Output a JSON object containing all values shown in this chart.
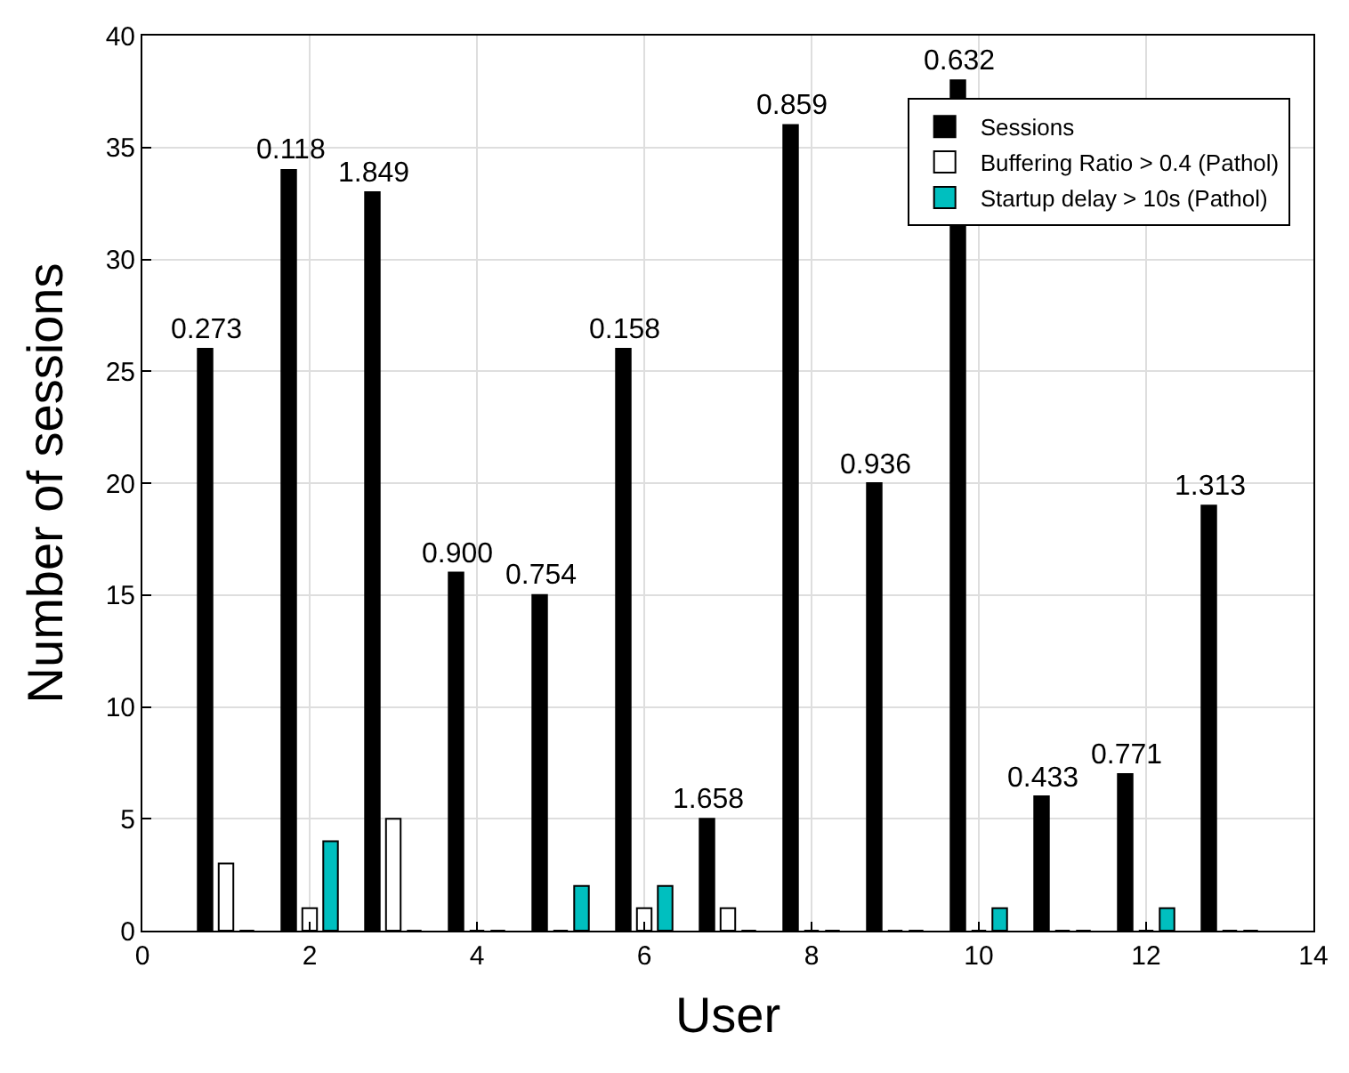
{
  "chart_data": {
    "type": "bar",
    "xlabel": "User",
    "ylabel": "Number of sessions",
    "x": [
      1,
      2,
      3,
      4,
      5,
      6,
      7,
      8,
      9,
      10,
      11,
      12,
      13
    ],
    "series": [
      {
        "name": "Sessions",
        "color": "#000000",
        "values": [
          26,
          34,
          33,
          16,
          15,
          26,
          5,
          36,
          20,
          38,
          6,
          7,
          19
        ]
      },
      {
        "name": "Buffering Ratio > 0.4 (Pathol)",
        "color": "#ffffff",
        "values": [
          3,
          1,
          5,
          0,
          0,
          1,
          1,
          0,
          0,
          0,
          0,
          0,
          0
        ]
      },
      {
        "name": "Startup delay > 10s (Pathol)",
        "color": "#00bfbf",
        "values": [
          0,
          4,
          0,
          0,
          2,
          2,
          0,
          0,
          0,
          1,
          0,
          1,
          0
        ]
      }
    ],
    "xlim": [
      0,
      14
    ],
    "xticks": [
      0,
      2,
      4,
      6,
      8,
      10,
      12,
      14
    ],
    "ylim": [
      0,
      40
    ],
    "yticks": [
      0,
      5,
      10,
      15,
      20,
      25,
      30,
      35,
      40
    ],
    "grid": true,
    "legend": "top right",
    "annotations": [
      "0.273",
      "0.118",
      "1.849",
      "0.900",
      "0.754",
      "0.158",
      "1.658",
      "0.859",
      "0.936",
      "0.632",
      "0.433",
      "0.771",
      "1.313"
    ]
  }
}
